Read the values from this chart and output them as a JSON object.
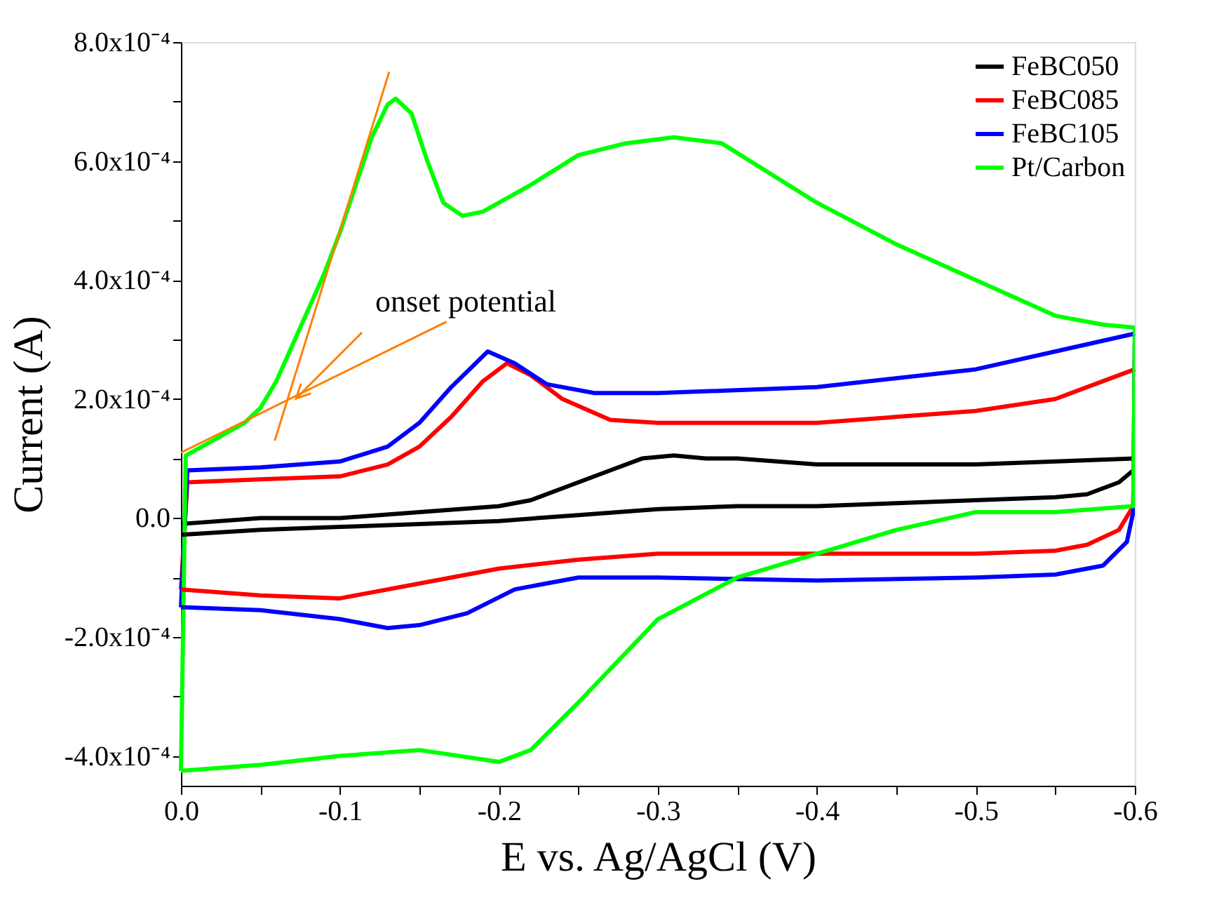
{
  "chart_data": {
    "type": "line",
    "xlabel": "E vs. Ag/AgCl (V)",
    "ylabel": "Current (A)",
    "xlim": [
      0,
      -0.6
    ],
    "ylim": [
      -0.00045,
      0.0008
    ],
    "xticks": [
      {
        "value": 0,
        "label": "0.0"
      },
      {
        "value": -0.05,
        "label": null
      },
      -0.1,
      {
        "value": -0.15,
        "label": null
      },
      -0.2,
      {
        "value": -0.25,
        "label": null
      },
      -0.3,
      {
        "value": -0.35,
        "label": null
      },
      -0.4,
      {
        "value": -0.45,
        "label": null
      },
      -0.5,
      {
        "value": -0.55,
        "label": null
      },
      -0.6
    ],
    "yticks": [
      {
        "value": -0.0004,
        "label": "-4.0x10⁻⁴"
      },
      {
        "value": -0.0003,
        "label": null
      },
      {
        "value": -0.0002,
        "label": "-2.0x10⁻⁴"
      },
      {
        "value": -0.0001,
        "label": null
      },
      {
        "value": 0,
        "label": "0.0"
      },
      {
        "value": 0.0001,
        "label": null
      },
      {
        "value": 0.0002,
        "label": "2.0x10⁻⁴"
      },
      {
        "value": 0.0003,
        "label": null
      },
      {
        "value": 0.0004,
        "label": "4.0x10⁻⁴"
      },
      {
        "value": 0.0005,
        "label": null
      },
      {
        "value": 0.0006,
        "label": "6.0x10⁻⁴"
      },
      {
        "value": 0.0007,
        "label": null
      },
      {
        "value": 0.0008,
        "label": "8.0x10⁻⁴"
      }
    ],
    "grid": false,
    "legend": "top right",
    "marker": "none",
    "line_style": "solid",
    "annotations": [
      "onset potential"
    ],
    "series": [
      {
        "name": "FeBC050",
        "color": "#000000",
        "x": [
          0,
          -0.05,
          -0.1,
          -0.15,
          -0.2,
          -0.22,
          -0.24,
          -0.27,
          -0.29,
          -0.31,
          -0.33,
          -0.35,
          -0.4,
          -0.45,
          -0.5,
          -0.55,
          -0.6
        ],
        "values": [
          -1e-05,
          0,
          0,
          1e-05,
          2e-05,
          3e-05,
          5e-05,
          8e-05,
          0.0001,
          0.000105,
          0.0001,
          0.0001,
          9e-05,
          9e-05,
          9e-05,
          9.5e-05,
          0.0001
        ]
      },
      {
        "color": "#000000",
        "x": [
          -0.6,
          -0.599,
          -0.59,
          -0.57,
          -0.55,
          -0.5,
          -0.45,
          -0.4,
          -0.35,
          -0.3,
          -0.25,
          -0.2,
          -0.15,
          -0.1,
          -0.05,
          0
        ],
        "values": [
          0.0001,
          8e-05,
          6e-05,
          4e-05,
          3.5e-05,
          3e-05,
          2.5e-05,
          2e-05,
          2e-05,
          1.5e-05,
          5e-06,
          -5e-06,
          -1e-05,
          -1.5e-05,
          -2e-05,
          -2.8e-05
        ]
      },
      {
        "name": "FeBC085",
        "color": "#ff0000",
        "x": [
          0,
          -0.004,
          -0.05,
          -0.1,
          -0.13,
          -0.15,
          -0.17,
          -0.19,
          -0.205,
          -0.22,
          -0.24,
          -0.27,
          -0.3,
          -0.4,
          -0.5,
          -0.55,
          -0.6
        ],
        "values": [
          -0.00012,
          6e-05,
          6.5e-05,
          7e-05,
          9e-05,
          0.00012,
          0.00017,
          0.00023,
          0.00026,
          0.00024,
          0.0002,
          0.000165,
          0.00016,
          0.00016,
          0.00018,
          0.0002,
          0.00025
        ]
      },
      {
        "color": "#ff0000",
        "x": [
          -0.6,
          -0.599,
          -0.59,
          -0.57,
          -0.55,
          -0.5,
          -0.4,
          -0.3,
          -0.25,
          -0.2,
          -0.15,
          -0.1,
          -0.05,
          0
        ],
        "values": [
          0.00025,
          2e-05,
          -2e-05,
          -4.5e-05,
          -5.5e-05,
          -6e-05,
          -6e-05,
          -6e-05,
          -7e-05,
          -8.5e-05,
          -0.00011,
          -0.000135,
          -0.00013,
          -0.00012
        ]
      },
      {
        "name": "FeBC105",
        "color": "#0000ff",
        "x": [
          0,
          -0.004,
          -0.05,
          -0.1,
          -0.13,
          -0.15,
          -0.17,
          -0.193,
          -0.21,
          -0.23,
          -0.26,
          -0.3,
          -0.4,
          -0.5,
          -0.55,
          -0.6
        ],
        "values": [
          -0.00015,
          8e-05,
          8.5e-05,
          9.5e-05,
          0.00012,
          0.00016,
          0.00022,
          0.00028,
          0.00026,
          0.000225,
          0.00021,
          0.00021,
          0.00022,
          0.00025,
          0.00028,
          0.00031
        ]
      },
      {
        "color": "#0000ff",
        "x": [
          -0.6,
          -0.599,
          -0.595,
          -0.58,
          -0.55,
          -0.5,
          -0.4,
          -0.3,
          -0.25,
          -0.21,
          -0.18,
          -0.15,
          -0.13,
          -0.1,
          -0.05,
          0
        ],
        "values": [
          0.00031,
          1e-05,
          -4e-05,
          -8e-05,
          -9.5e-05,
          -0.0001,
          -0.000105,
          -0.0001,
          -0.0001,
          -0.00012,
          -0.00016,
          -0.00018,
          -0.000185,
          -0.00017,
          -0.000155,
          -0.00015
        ]
      },
      {
        "name": "Pt/Carbon",
        "color": "#00ff00",
        "x": [
          0,
          -0.003,
          -0.02,
          -0.04,
          -0.05,
          -0.06,
          -0.07,
          -0.08,
          -0.09,
          -0.1,
          -0.11,
          -0.12,
          -0.13,
          -0.135,
          -0.145,
          -0.155,
          -0.165,
          -0.177,
          -0.19,
          -0.22,
          -0.25,
          -0.28,
          -0.31,
          -0.34,
          -0.37,
          -0.4,
          -0.45,
          -0.5,
          -0.55,
          -0.58,
          -0.6
        ],
        "values": [
          -0.000425,
          0.000105,
          0.00013,
          0.00016,
          0.000185,
          0.00023,
          0.00029,
          0.00035,
          0.00041,
          0.00048,
          0.00056,
          0.00064,
          0.000695,
          0.000705,
          0.00068,
          0.0006,
          0.00053,
          0.000508,
          0.000515,
          0.00056,
          0.00061,
          0.00063,
          0.00064,
          0.00063,
          0.00058,
          0.00053,
          0.00046,
          0.0004,
          0.00034,
          0.000325,
          0.00032
        ]
      },
      {
        "color": "#00ff00",
        "x": [
          -0.6,
          -0.599,
          -0.55,
          -0.5,
          -0.45,
          -0.4,
          -0.35,
          -0.3,
          -0.25,
          -0.22,
          -0.2,
          -0.15,
          -0.1,
          -0.05,
          0
        ],
        "values": [
          0.00032,
          2e-05,
          1e-05,
          1e-05,
          -2e-05,
          -6e-05,
          -0.0001,
          -0.00017,
          -0.00031,
          -0.00039,
          -0.00041,
          -0.00039,
          -0.0004,
          -0.000415,
          -0.000425
        ]
      },
      {
        "color": "#ff8000",
        "x": [
          -0.059,
          -0.131
        ],
        "values": [
          0.00013,
          0.00075
        ]
      },
      {
        "color": "#ff8000",
        "x": [
          0,
          -0.167
        ],
        "values": [
          0.00011,
          0.00033
        ]
      }
    ]
  }
}
